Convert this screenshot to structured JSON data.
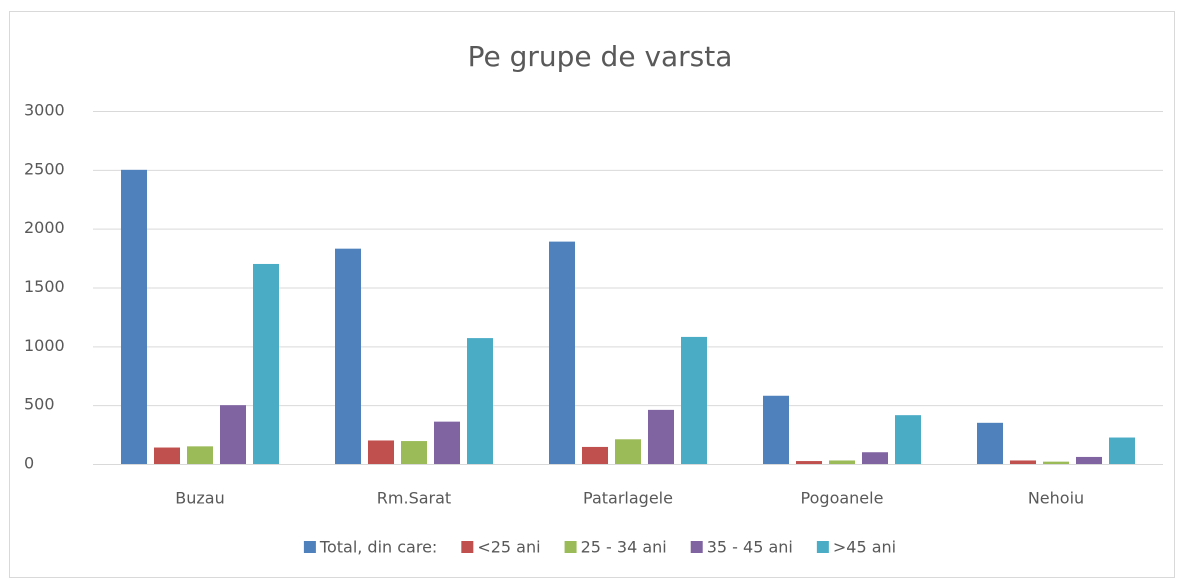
{
  "chart_data": {
    "type": "bar",
    "title": "Pe grupe de varsta",
    "categories": [
      "Buzau",
      "Rm.Sarat",
      "Patarlagele",
      "Pogoanele",
      "Nehoiu"
    ],
    "series": [
      {
        "name": "Total, din care:",
        "color": "#4f81bd",
        "values": [
          2500,
          1830,
          1890,
          580,
          350
        ]
      },
      {
        "name": "<25 ani",
        "color": "#c0504d",
        "values": [
          140,
          200,
          145,
          25,
          30
        ]
      },
      {
        "name": "25 - 34 ani",
        "color": "#9bbb59",
        "values": [
          150,
          195,
          210,
          30,
          20
        ]
      },
      {
        "name": "35 - 45 ani",
        "color": "#8064a2",
        "values": [
          500,
          360,
          460,
          100,
          60
        ]
      },
      {
        "name": ">45 ani",
        "color": "#4bacc6",
        "values": [
          1700,
          1070,
          1080,
          415,
          225
        ]
      }
    ],
    "ylim": [
      0,
      3000
    ],
    "yticks": [
      0,
      500,
      1000,
      1500,
      2000,
      2500,
      3000
    ],
    "grid": true,
    "legend": "bottom"
  }
}
